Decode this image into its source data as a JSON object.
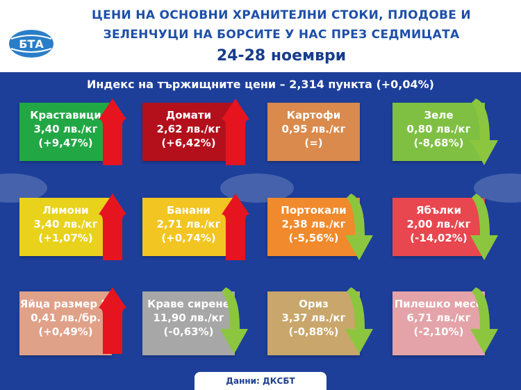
{
  "header": {
    "title_line1": "ЦЕНИ НА ОСНОВНИ ХРАНИТЕЛНИ СТОКИ, ПЛОДОВЕ И",
    "title_line2": "ЗЕЛЕНЧУЦИ НА БОРСИТЕ У НАС ПРЕЗ СЕДМИЦАТА",
    "dates": "24-28 ноември",
    "logo_text": "БТА"
  },
  "subtitle": "Индекс на тържищните цени – 2,314 пункта (+0,04%)",
  "items": [
    {
      "name": "Краставици",
      "price": "3,40 лв./кг",
      "change": "(+9,47%)",
      "color": "#22a745",
      "trend": "up"
    },
    {
      "name": "Домати",
      "price": "2,62 лв./кг",
      "change": "(+6,42%)",
      "color": "#b3101c",
      "trend": "up"
    },
    {
      "name": "Картофи",
      "price": "0,95 лв./кг",
      "change": "(=)",
      "color": "#d98a4c",
      "trend": "none"
    },
    {
      "name": "Зеле",
      "price": "0,80 лв./кг",
      "change": "(-8,68%)",
      "color": "#7fc043",
      "trend": "down"
    },
    {
      "name": "Лимони",
      "price": "3,40 лв./кг",
      "change": "(+1,07%)",
      "color": "#e8d21c",
      "trend": "up"
    },
    {
      "name": "Банани",
      "price": "2,71 лв./кг",
      "change": "(+0,74%)",
      "color": "#f3c522",
      "trend": "up"
    },
    {
      "name": "Портокали",
      "price": "2,38 лв./кг",
      "change": "(-5,56%)",
      "color": "#f08a2c",
      "trend": "down"
    },
    {
      "name": "Ябълки",
      "price": "2,00 лв./кг",
      "change": "(-14,02%)",
      "color": "#e8474f",
      "trend": "down"
    },
    {
      "name": "Яйца размер М",
      "price": "0,41 лв./бр.",
      "change": "(+0,49%)",
      "color": "#e0a189",
      "trend": "up"
    },
    {
      "name": "Краве сирене",
      "price": "11,90 лв./кг",
      "change": "(-0,63%)",
      "color": "#a7a7a7",
      "trend": "down"
    },
    {
      "name": "Ориз",
      "price": "3,37 лв./кг",
      "change": "(-0,88%)",
      "color": "#c9a66b",
      "trend": "down"
    },
    {
      "name": "Пилешко месо",
      "price": "6,71 лв./кг",
      "change": "(-2,10%)",
      "color": "#e4a3a8",
      "trend": "down"
    }
  ],
  "footer": "Данни: ДКСБТ",
  "colors": {
    "background": "#1d3f9a",
    "up_arrow": "#e5141f",
    "down_arrow": "#8cc63f",
    "title": "#1e4fa8"
  }
}
